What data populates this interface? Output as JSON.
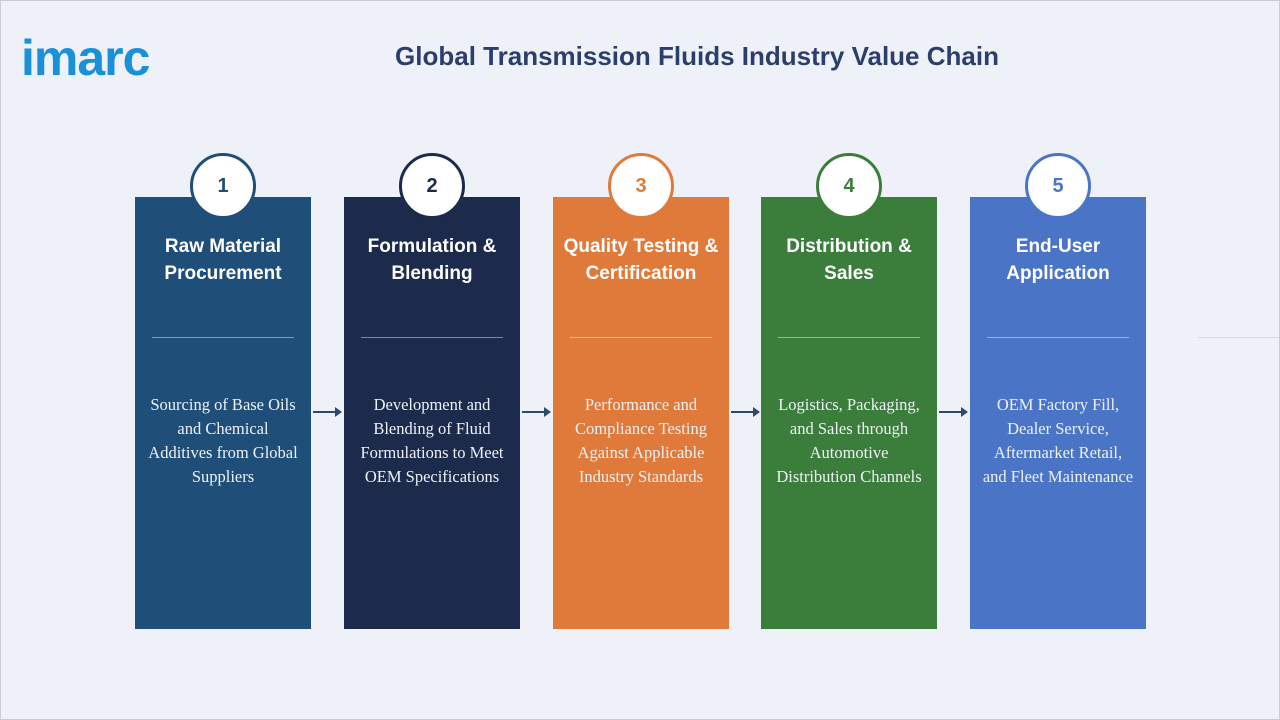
{
  "logo": "imarc",
  "title": "Global Transmission Fluids Industry Value Chain",
  "stages": [
    {
      "number": "1",
      "title": "Raw Material Procurement",
      "description": "Sourcing of Base Oils and Chemical Additives from Global Suppliers",
      "color": "#1f4e79"
    },
    {
      "number": "2",
      "title": "Formulation & Blending",
      "description": "Development and Blending of Fluid Formulations to Meet OEM Specifications",
      "color": "#1c2a4c"
    },
    {
      "number": "3",
      "title": "Quality Testing & Certification",
      "description": "Performance and Compliance Testing Against Applicable Industry Standards",
      "color": "#e07a3a"
    },
    {
      "number": "4",
      "title": "Distribution & Sales",
      "description": "Logistics, Packaging, and Sales through Automotive Distribution Channels",
      "color": "#3b7d3b"
    },
    {
      "number": "5",
      "title": "End-User Application",
      "description": "OEM Factory Fill, Dealer Service, Aftermarket Retail, and Fleet Maintenance",
      "color": "#4a74c6"
    }
  ]
}
